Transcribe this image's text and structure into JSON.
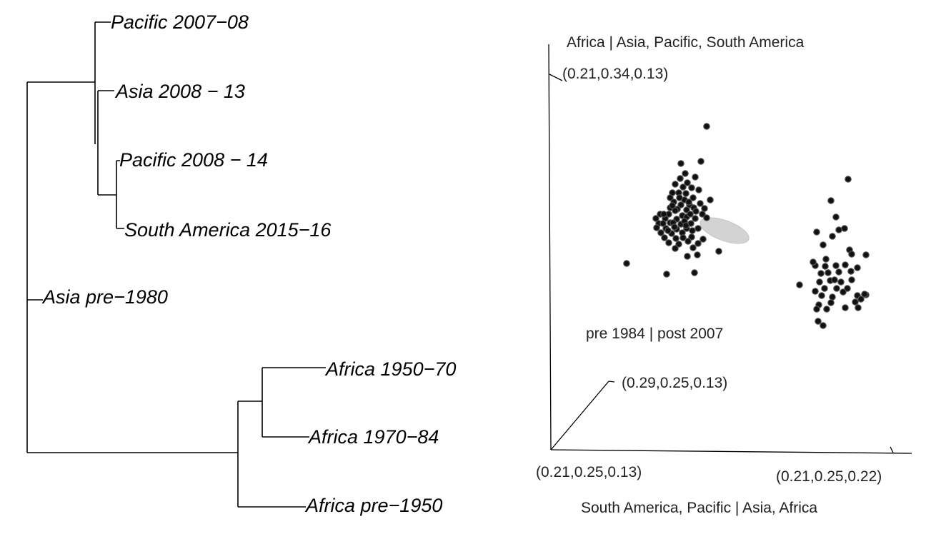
{
  "tree": {
    "tips": {
      "pacific_2007_08": "Pacific 2007−08",
      "asia_2008_13": "Asia 2008 − 13",
      "pacific_2008_14": "Pacific 2008 − 14",
      "south_america_2015_16": "South America 2015−16",
      "asia_pre_1980": "Asia pre−1980",
      "africa_1950_70": "Africa 1950−70",
      "africa_1970_84": "Africa 1970−84",
      "africa_pre_1950": "Africa pre−1950"
    }
  },
  "chart_data": {
    "type": "scatter",
    "axes": {
      "vertical_label": "Africa | Asia, Pacific, South America",
      "depth_label": "pre 1984 | post 2007",
      "horizontal_label": "South America, Pacific | Asia, Africa",
      "origin_tick": "(0.21,0.25,0.13)",
      "vertical_tick": "(0.21,0.34,0.13)",
      "depth_tick": "(0.29,0.25,0.13)",
      "horizontal_tick": "(0.21,0.25,0.22)"
    },
    "clusters": [
      {
        "name": "",
        "point_count": 80
      },
      {
        "name": "",
        "point_count": 48
      }
    ],
    "ellipse_color": "#d3d3d3",
    "point_color": "#111111"
  }
}
